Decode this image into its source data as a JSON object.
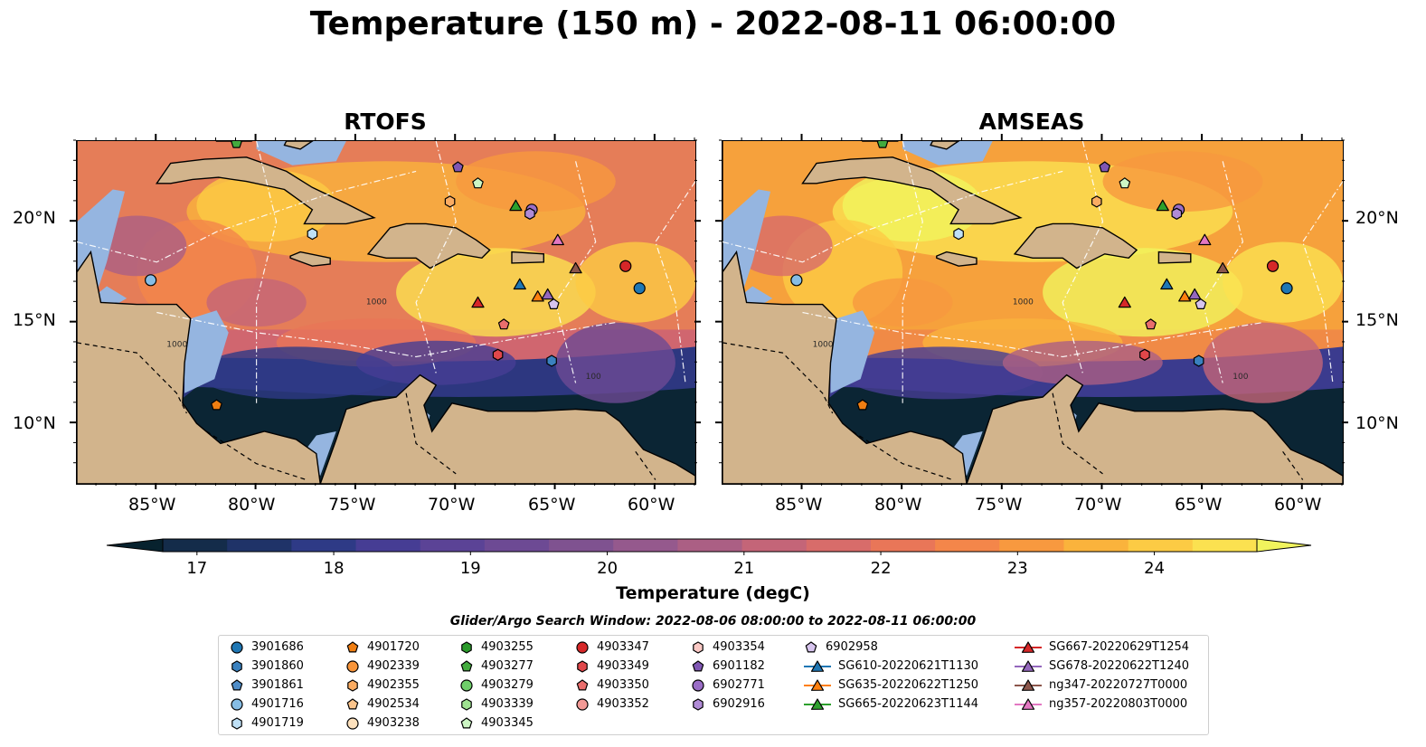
{
  "title": "Temperature (150 m) - 2022-08-11 06:00:00",
  "panels": [
    {
      "title": "RTOFS"
    },
    {
      "title": "AMSEAS"
    }
  ],
  "lon_ticks": [
    "85°W",
    "80°W",
    "75°W",
    "70°W",
    "65°W",
    "60°W"
  ],
  "lat_ticks": [
    "20°N",
    "15°N",
    "10°N"
  ],
  "colorbar": {
    "label": "Temperature (degC)",
    "ticks": [
      "17",
      "18",
      "19",
      "20",
      "21",
      "22",
      "23",
      "24"
    ],
    "range": [
      16.75,
      24.75
    ],
    "extend": "both",
    "colors": [
      "#07222e",
      "#142c4a",
      "#1f3368",
      "#2e3a86",
      "#463d94",
      "#5b4396",
      "#6d4a94",
      "#7f5290",
      "#95598d",
      "#ab5f84",
      "#c46578",
      "#d86c6a",
      "#e97658",
      "#f4864a",
      "#f8993f",
      "#fab33c",
      "#fccb44",
      "#fbe150",
      "#f1f45d"
    ]
  },
  "contour_labels": [
    "100",
    "1000"
  ],
  "search_window": "Glider/Argo Search Window: 2022-08-06 08:00:00 to 2022-08-11 06:00:00",
  "legend": [
    {
      "label": "3901686",
      "marker": "circle",
      "color": "#1f77b4"
    },
    {
      "label": "3901860",
      "marker": "hexagon",
      "color": "#3a81bf"
    },
    {
      "label": "3901861",
      "marker": "pentagon",
      "color": "#4f8dc8"
    },
    {
      "label": "4901716",
      "marker": "circle",
      "color": "#86bde5"
    },
    {
      "label": "4901719",
      "marker": "hexagon",
      "color": "#bfe0f6"
    },
    {
      "label": "4901720",
      "marker": "pentagon",
      "color": "#f07e12"
    },
    {
      "label": "4902339",
      "marker": "circle",
      "color": "#f8953a"
    },
    {
      "label": "4902355",
      "marker": "hexagon",
      "color": "#fbac62"
    },
    {
      "label": "4902534",
      "marker": "pentagon",
      "color": "#fcc58c"
    },
    {
      "label": "4903238",
      "marker": "circle",
      "color": "#fde1bd"
    },
    {
      "label": "4903255",
      "marker": "hexagon",
      "color": "#2a9a2a"
    },
    {
      "label": "4903277",
      "marker": "pentagon",
      "color": "#43ab3e"
    },
    {
      "label": "4903279",
      "marker": "circle",
      "color": "#6fce6a"
    },
    {
      "label": "4903339",
      "marker": "hexagon",
      "color": "#9fe291"
    },
    {
      "label": "4903345",
      "marker": "pentagon",
      "color": "#cdf6c4"
    },
    {
      "label": "4903347",
      "marker": "circle",
      "color": "#d62728"
    },
    {
      "label": "4903349",
      "marker": "hexagon",
      "color": "#e0474a"
    },
    {
      "label": "4903350",
      "marker": "pentagon",
      "color": "#ea6e6d"
    },
    {
      "label": "4903352",
      "marker": "circle",
      "color": "#f39a96"
    },
    {
      "label": "4903354",
      "marker": "hexagon",
      "color": "#fbc9c5"
    },
    {
      "label": "6901182",
      "marker": "pentagon",
      "color": "#8057b4"
    },
    {
      "label": "6902771",
      "marker": "circle",
      "color": "#9a6dc6"
    },
    {
      "label": "6902916",
      "marker": "hexagon",
      "color": "#b08bd6"
    },
    {
      "label": "6902958",
      "marker": "pentagon",
      "color": "#d7c4ee"
    },
    {
      "label": "SG610-20220621T1130",
      "marker": "triangle",
      "color": "#1f77b4"
    },
    {
      "label": "SG635-20220622T1250",
      "marker": "triangle",
      "color": "#ff7f0e"
    },
    {
      "label": "SG665-20220623T1144",
      "marker": "triangle",
      "color": "#2ca02c"
    },
    {
      "label": "SG667-20220629T1254",
      "marker": "triangle",
      "color": "#d62728"
    },
    {
      "label": "SG678-20220622T1240",
      "marker": "triangle",
      "color": "#9467bd"
    },
    {
      "label": "ng347-20220727T0000",
      "marker": "triangle",
      "color": "#8c564b"
    },
    {
      "label": "ng357-20220803T0000",
      "marker": "triangle",
      "color": "#e377c2"
    }
  ],
  "map_extent": {
    "lon": [
      -89,
      -58
    ],
    "lat": [
      7,
      24
    ]
  },
  "positions": [
    {
      "id": "3901686",
      "lon": -60.8,
      "lat": 16.7
    },
    {
      "id": "3901860",
      "lon": -65.2,
      "lat": 13.1
    },
    {
      "id": "3901861",
      "lon": -61.5,
      "lat": 17.8
    },
    {
      "id": "4901716",
      "lon": -85.3,
      "lat": 17.1
    },
    {
      "id": "4901719",
      "lon": -77.2,
      "lat": 19.4
    },
    {
      "id": "4901720",
      "lon": -82.0,
      "lat": 10.9
    },
    {
      "id": "4902355",
      "lon": -70.3,
      "lat": 21.0
    },
    {
      "id": "4903277",
      "lon": -81.0,
      "lat": 23.9
    },
    {
      "id": "4903345",
      "lon": -68.9,
      "lat": 21.9
    },
    {
      "id": "4903347",
      "lon": -61.5,
      "lat": 17.8
    },
    {
      "id": "4903349",
      "lon": -67.9,
      "lat": 13.4
    },
    {
      "id": "4903350",
      "lon": -67.6,
      "lat": 14.9
    },
    {
      "id": "6901182",
      "lon": -69.9,
      "lat": 22.7
    },
    {
      "id": "6902771",
      "lon": -66.2,
      "lat": 20.6
    },
    {
      "id": "6902916",
      "lon": -66.3,
      "lat": 20.4
    },
    {
      "id": "6902958",
      "lon": -65.1,
      "lat": 15.9
    },
    {
      "id": "SG610-20220621T1130",
      "lon": -66.8,
      "lat": 16.9
    },
    {
      "id": "SG635-20220622T1250",
      "lon": -65.9,
      "lat": 16.3
    },
    {
      "id": "SG665-20220623T1144",
      "lon": -67.0,
      "lat": 20.8
    },
    {
      "id": "SG667-20220629T1254",
      "lon": -68.9,
      "lat": 16.0
    },
    {
      "id": "SG678-20220622T1240",
      "lon": -65.4,
      "lat": 16.4
    },
    {
      "id": "ng347-20220727T0000",
      "lon": -64.0,
      "lat": 17.7
    },
    {
      "id": "ng357-20220803T0000",
      "lon": -64.9,
      "lat": 19.1
    }
  ]
}
